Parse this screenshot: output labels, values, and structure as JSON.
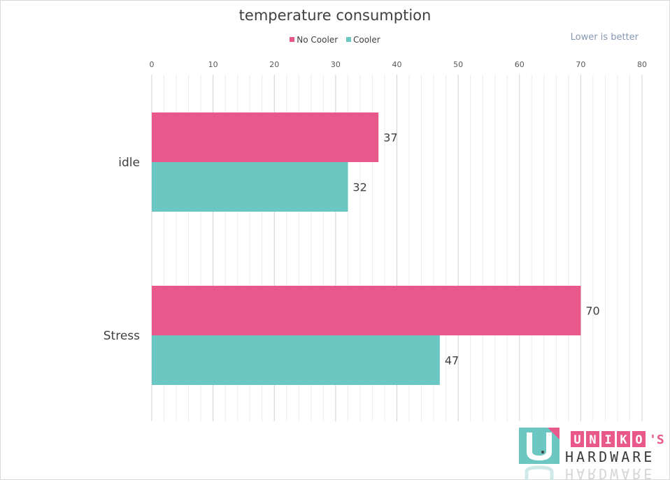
{
  "chart_data": {
    "type": "bar",
    "orientation": "horizontal",
    "title": "temperature consumption",
    "annotation": "Lower is better",
    "categories": [
      "idle",
      "Stress"
    ],
    "series": [
      {
        "name": "No Cooler",
        "color": "#e9588a",
        "values": [
          37,
          70
        ]
      },
      {
        "name": "Cooler",
        "color": "#6cc6c2",
        "values": [
          32,
          47
        ]
      }
    ],
    "xlim": [
      0,
      80
    ],
    "x_ticks": [
      0,
      10,
      20,
      30,
      40,
      50,
      60,
      70,
      80
    ],
    "x_axis_position": "top",
    "grid": true,
    "legend_position": "top"
  },
  "logo": {
    "letters": [
      "U",
      "N",
      "I",
      "K",
      "O"
    ],
    "suffix": "'S",
    "line2": "HARDWARE",
    "colors": {
      "teal": "#6cc6c2",
      "pink": "#e9588a"
    }
  }
}
